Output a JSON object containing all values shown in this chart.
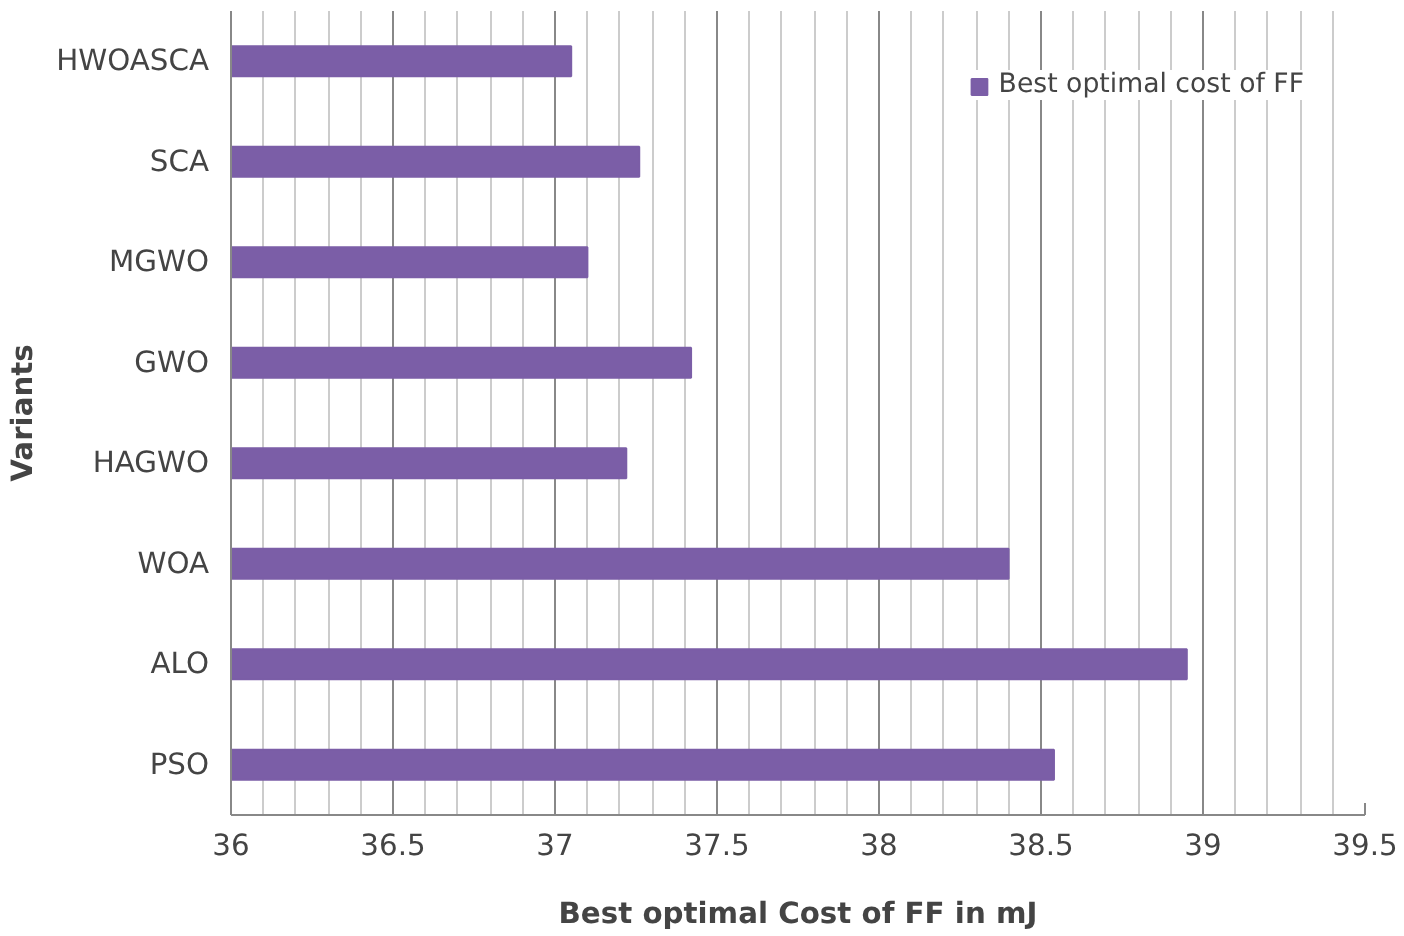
{
  "chart_data": {
    "type": "bar",
    "orientation": "horizontal",
    "xlabel": "Best optimal Cost of FF in mJ",
    "ylabel": "Variants",
    "categories": [
      "HWOASCA",
      "SCA",
      "MGWO",
      "GWO",
      "HAGWO",
      "WOA",
      "ALO",
      "PSO"
    ],
    "series": [
      {
        "name": "Best optimal cost of FF",
        "color": "#7b5ea7",
        "values": [
          37.05,
          37.26,
          37.1,
          37.42,
          37.22,
          38.4,
          38.95,
          38.54
        ]
      }
    ],
    "xlim": [
      36,
      39.5
    ],
    "xticks": [
      36,
      36.5,
      37,
      37.5,
      38,
      38.5,
      39,
      39.5
    ],
    "grid": "x",
    "legend": "top right"
  }
}
